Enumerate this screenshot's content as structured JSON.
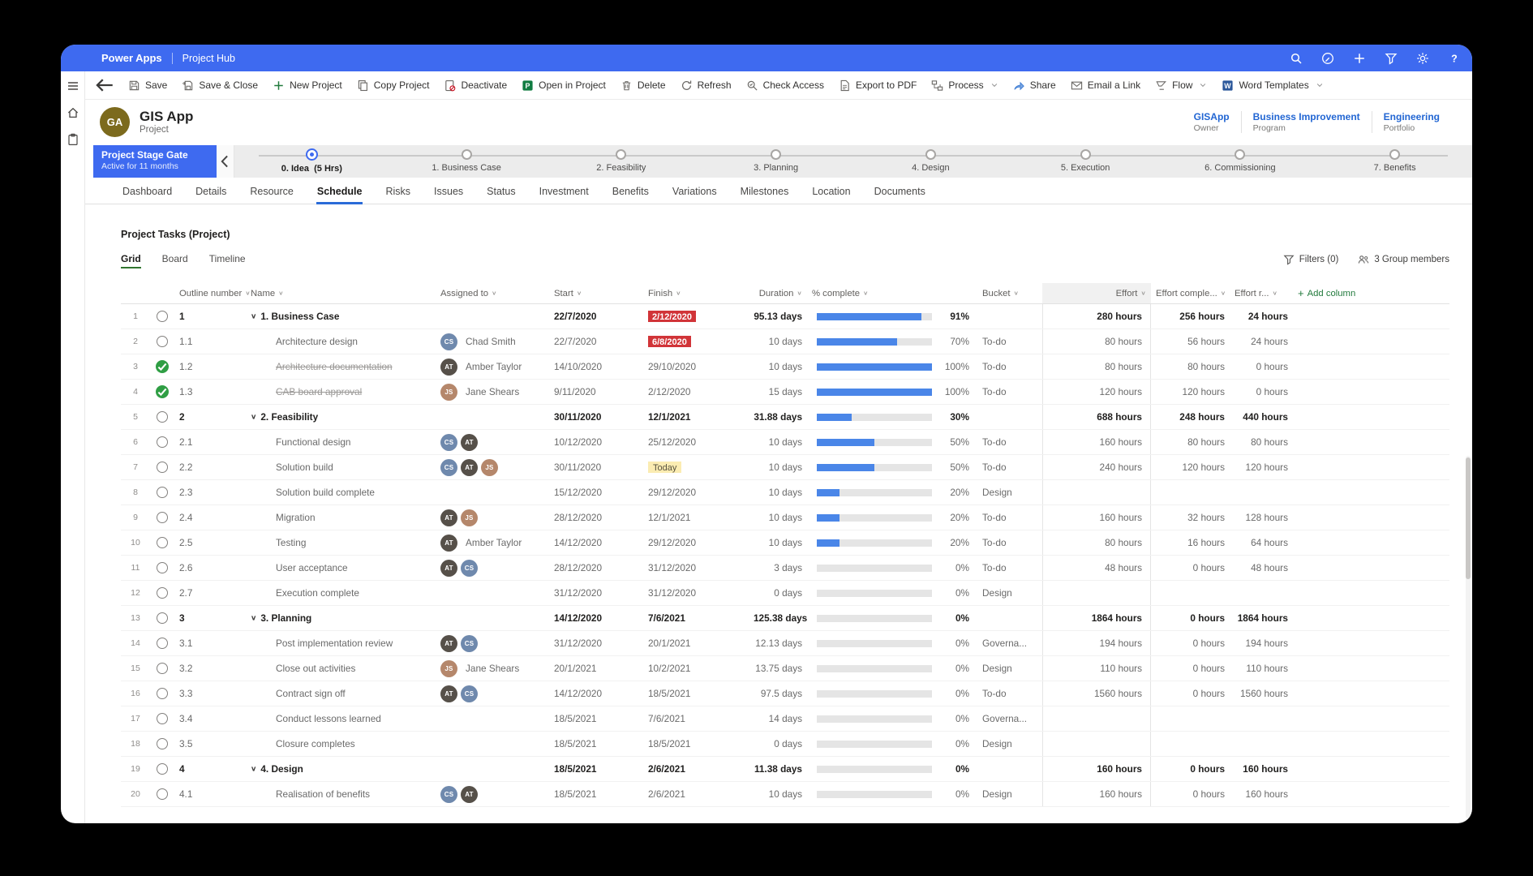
{
  "palette": {
    "appbar_blue": "#3e6af0",
    "accent_blue": "#2b6bd8",
    "link_blue": "#2266d3",
    "red_badge": "#d13438",
    "yellow_badge_bg": "#fbecb2",
    "yellow_badge_text": "#57523e",
    "bar_fill": "#4a86e8",
    "bar_track": "#e5e5e5",
    "green_check": "#2f9e44",
    "proj_green": "#31752f",
    "avatar_cs": "#6f89ad",
    "avatar_js": "#b5876b",
    "avatar_at": "#565049",
    "ga_avatar": "#7c6a1d"
  },
  "app_bar": {
    "product": "Power Apps",
    "app": "Project Hub",
    "right_icons": [
      "search-icon",
      "edit-environment-icon",
      "add-icon",
      "filter-icon",
      "settings-gear-icon",
      "help-icon"
    ]
  },
  "command_bar": {
    "items": [
      {
        "label": "Save",
        "icon": "save"
      },
      {
        "label": "Save & Close",
        "icon": "save-close"
      },
      {
        "label": "New Project",
        "icon": "new-plus"
      },
      {
        "label": "Copy Project",
        "icon": "copy"
      },
      {
        "label": "Deactivate",
        "icon": "deactivate"
      },
      {
        "label": "Open in Project",
        "icon": "open-project"
      },
      {
        "label": "Delete",
        "icon": "delete"
      },
      {
        "label": "Refresh",
        "icon": "refresh"
      },
      {
        "label": "Check Access",
        "icon": "check-access"
      },
      {
        "label": "Export to PDF",
        "icon": "export-pdf"
      },
      {
        "label": "Process",
        "icon": "process",
        "chevron": true
      },
      {
        "label": "Share",
        "icon": "share"
      },
      {
        "label": "Email a Link",
        "icon": "email"
      },
      {
        "label": "Flow",
        "icon": "flow",
        "chevron": true
      },
      {
        "label": "Word Templates",
        "icon": "word",
        "chevron": true
      }
    ]
  },
  "record_header": {
    "initials": "GA",
    "title": "GIS App",
    "entity": "Project",
    "fields": [
      {
        "value": "GISApp",
        "label": "Owner"
      },
      {
        "value": "Business Improvement",
        "label": "Program"
      },
      {
        "value": "Engineering",
        "label": "Portfolio"
      }
    ]
  },
  "stage_gate": {
    "title": "Project Stage Gate",
    "subtitle": "Active for 11 months",
    "stages": [
      {
        "label": "0. Idea  (5 Hrs)",
        "active": true
      },
      {
        "label": "1. Business Case"
      },
      {
        "label": "2. Feasibility"
      },
      {
        "label": "3. Planning"
      },
      {
        "label": "4. Design"
      },
      {
        "label": "5. Execution"
      },
      {
        "label": "6. Commissioning"
      },
      {
        "label": "7. Benefits"
      }
    ]
  },
  "tabs": {
    "active": "Schedule",
    "items": [
      "Dashboard",
      "Details",
      "Resource",
      "Schedule",
      "Risks",
      "Issues",
      "Status",
      "Investment",
      "Benefits",
      "Variations",
      "Milestones",
      "Location",
      "Documents"
    ]
  },
  "section": {
    "title": "Project Tasks (Project)",
    "views": [
      "Grid",
      "Board",
      "Timeline"
    ],
    "active_view": "Grid",
    "filters_label": "Filters (0)",
    "group_members_label": "3 Group members",
    "add_column_label": "Add column"
  },
  "table": {
    "columns": [
      {
        "label": "Outline number"
      },
      {
        "label": "Name"
      },
      {
        "label": "Assigned to"
      },
      {
        "label": "Start"
      },
      {
        "label": "Finish"
      },
      {
        "label": "Duration",
        "align": "right"
      },
      {
        "label": "% complete"
      },
      {
        "label": "Bucket"
      },
      {
        "label": "Effort",
        "align": "right",
        "shaded": true
      },
      {
        "label": "Effort comple..."
      },
      {
        "label": "Effort r..."
      }
    ],
    "assignee_directory": {
      "cs": {
        "initials": "CS",
        "name": "Chad Smith"
      },
      "at": {
        "initials": "AT",
        "name": "Amber Taylor"
      },
      "js": {
        "initials": "JS",
        "name": "Jane Shears"
      }
    },
    "rows": [
      {
        "n": 1,
        "status": "open",
        "outline": "1",
        "name": "1. Business Case",
        "summary": true,
        "avatars": [],
        "assignee_name": "",
        "start": "22/7/2020",
        "finish": "2/12/2020",
        "finish_badge": "red",
        "duration": "95.13 days",
        "pct": 91,
        "pct_label": "91%",
        "bucket": "",
        "effort": "280 hours",
        "effort_complete": "256 hours",
        "effort_remaining": "24 hours"
      },
      {
        "n": 2,
        "status": "open",
        "outline": "1.1",
        "name": "Architecture design",
        "summary": false,
        "avatars": [
          "cs"
        ],
        "assignee_name": "Chad Smith",
        "start": "22/7/2020",
        "finish": "6/8/2020",
        "finish_badge": "red",
        "duration": "10 days",
        "pct": 70,
        "pct_label": "70%",
        "bucket": "To-do",
        "effort": "80 hours",
        "effort_complete": "56 hours",
        "effort_remaining": "24 hours"
      },
      {
        "n": 3,
        "status": "done",
        "outline": "1.2",
        "name": "Architecture documentation",
        "summary": false,
        "strike": true,
        "avatars": [
          "at"
        ],
        "assignee_name": "Amber Taylor",
        "start": "14/10/2020",
        "finish": "29/10/2020",
        "finish_badge": "",
        "duration": "10 days",
        "pct": 100,
        "pct_label": "100%",
        "bucket": "To-do",
        "effort": "80 hours",
        "effort_complete": "80 hours",
        "effort_remaining": "0 hours"
      },
      {
        "n": 4,
        "status": "done",
        "outline": "1.3",
        "name": "CAB board approval",
        "summary": false,
        "strike": true,
        "avatars": [
          "js"
        ],
        "assignee_name": "Jane Shears",
        "start": "9/11/2020",
        "finish": "2/12/2020",
        "finish_badge": "",
        "duration": "15 days",
        "pct": 100,
        "pct_label": "100%",
        "bucket": "To-do",
        "effort": "120 hours",
        "effort_complete": "120 hours",
        "effort_remaining": "0 hours"
      },
      {
        "n": 5,
        "status": "open",
        "outline": "2",
        "name": "2. Feasibility",
        "summary": true,
        "avatars": [],
        "assignee_name": "",
        "start": "30/11/2020",
        "finish": "12/1/2021",
        "finish_badge": "",
        "duration": "31.88 days",
        "pct": 30,
        "pct_label": "30%",
        "bucket": "",
        "effort": "688 hours",
        "effort_complete": "248 hours",
        "effort_remaining": "440 hours"
      },
      {
        "n": 6,
        "status": "open",
        "outline": "2.1",
        "name": "Functional design",
        "summary": false,
        "avatars": [
          "cs",
          "at"
        ],
        "assignee_name": "",
        "start": "10/12/2020",
        "finish": "25/12/2020",
        "finish_badge": "",
        "duration": "10 days",
        "pct": 50,
        "pct_label": "50%",
        "bucket": "To-do",
        "effort": "160 hours",
        "effort_complete": "80 hours",
        "effort_remaining": "80 hours"
      },
      {
        "n": 7,
        "status": "open",
        "outline": "2.2",
        "name": "Solution build",
        "summary": false,
        "avatars": [
          "cs",
          "at",
          "js"
        ],
        "assignee_name": "",
        "start": "30/11/2020",
        "finish": "Today",
        "finish_badge": "today",
        "duration": "10 days",
        "pct": 50,
        "pct_label": "50%",
        "bucket": "To-do",
        "effort": "240 hours",
        "effort_complete": "120 hours",
        "effort_remaining": "120 hours"
      },
      {
        "n": 8,
        "status": "open",
        "outline": "2.3",
        "name": "Solution build complete",
        "summary": false,
        "avatars": [],
        "assignee_name": "",
        "start": "15/12/2020",
        "finish": "29/12/2020",
        "finish_badge": "",
        "duration": "10 days",
        "pct": 20,
        "pct_label": "20%",
        "bucket": "Design",
        "effort": "",
        "effort_complete": "",
        "effort_remaining": ""
      },
      {
        "n": 9,
        "status": "open",
        "outline": "2.4",
        "name": "Migration",
        "summary": false,
        "avatars": [
          "at",
          "js"
        ],
        "assignee_name": "",
        "start": "28/12/2020",
        "finish": "12/1/2021",
        "finish_badge": "",
        "duration": "10 days",
        "pct": 20,
        "pct_label": "20%",
        "bucket": "To-do",
        "effort": "160 hours",
        "effort_complete": "32 hours",
        "effort_remaining": "128 hours"
      },
      {
        "n": 10,
        "status": "open",
        "outline": "2.5",
        "name": "Testing",
        "summary": false,
        "avatars": [
          "at"
        ],
        "assignee_name": "Amber Taylor",
        "start": "14/12/2020",
        "finish": "29/12/2020",
        "finish_badge": "",
        "duration": "10 days",
        "pct": 20,
        "pct_label": "20%",
        "bucket": "To-do",
        "effort": "80 hours",
        "effort_complete": "16 hours",
        "effort_remaining": "64 hours"
      },
      {
        "n": 11,
        "status": "open",
        "outline": "2.6",
        "name": "User acceptance",
        "summary": false,
        "avatars": [
          "at",
          "cs"
        ],
        "assignee_name": "",
        "start": "28/12/2020",
        "finish": "31/12/2020",
        "finish_badge": "",
        "duration": "3 days",
        "pct": 0,
        "pct_label": "0%",
        "bucket": "To-do",
        "effort": "48 hours",
        "effort_complete": "0 hours",
        "effort_remaining": "48 hours"
      },
      {
        "n": 12,
        "status": "open",
        "outline": "2.7",
        "name": "Execution complete",
        "summary": false,
        "avatars": [],
        "assignee_name": "",
        "start": "31/12/2020",
        "finish": "31/12/2020",
        "finish_badge": "",
        "duration": "0 days",
        "pct": 0,
        "pct_label": "0%",
        "bucket": "Design",
        "effort": "",
        "effort_complete": "",
        "effort_remaining": ""
      },
      {
        "n": 13,
        "status": "open",
        "outline": "3",
        "name": "3. Planning",
        "summary": true,
        "avatars": [],
        "assignee_name": "",
        "start": "14/12/2020",
        "finish": "7/6/2021",
        "finish_badge": "",
        "duration": "125.38 days",
        "pct": 0,
        "pct_label": "0%",
        "bucket": "",
        "effort": "1864 hours",
        "effort_complete": "0 hours",
        "effort_remaining": "1864 hours"
      },
      {
        "n": 14,
        "status": "open",
        "outline": "3.1",
        "name": "Post implementation review",
        "summary": false,
        "avatars": [
          "at",
          "cs"
        ],
        "assignee_name": "",
        "start": "31/12/2020",
        "finish": "20/1/2021",
        "finish_badge": "",
        "duration": "12.13 days",
        "pct": 0,
        "pct_label": "0%",
        "bucket": "Governa...",
        "effort": "194 hours",
        "effort_complete": "0 hours",
        "effort_remaining": "194 hours"
      },
      {
        "n": 15,
        "status": "open",
        "outline": "3.2",
        "name": "Close out activities",
        "summary": false,
        "avatars": [
          "js"
        ],
        "assignee_name": "Jane Shears",
        "start": "20/1/2021",
        "finish": "10/2/2021",
        "finish_badge": "",
        "duration": "13.75 days",
        "pct": 0,
        "pct_label": "0%",
        "bucket": "Design",
        "effort": "110 hours",
        "effort_complete": "0 hours",
        "effort_remaining": "110 hours"
      },
      {
        "n": 16,
        "status": "open",
        "outline": "3.3",
        "name": "Contract sign off",
        "summary": false,
        "avatars": [
          "at",
          "cs"
        ],
        "assignee_name": "",
        "start": "14/12/2020",
        "finish": "18/5/2021",
        "finish_badge": "",
        "duration": "97.5 days",
        "pct": 0,
        "pct_label": "0%",
        "bucket": "To-do",
        "effort": "1560 hours",
        "effort_complete": "0 hours",
        "effort_remaining": "1560 hours"
      },
      {
        "n": 17,
        "status": "open",
        "outline": "3.4",
        "name": "Conduct lessons learned",
        "summary": false,
        "avatars": [],
        "assignee_name": "",
        "start": "18/5/2021",
        "finish": "7/6/2021",
        "finish_badge": "",
        "duration": "14 days",
        "pct": 0,
        "pct_label": "0%",
        "bucket": "Governa...",
        "effort": "",
        "effort_complete": "",
        "effort_remaining": ""
      },
      {
        "n": 18,
        "status": "open",
        "outline": "3.5",
        "name": "Closure completes",
        "summary": false,
        "avatars": [],
        "assignee_name": "",
        "start": "18/5/2021",
        "finish": "18/5/2021",
        "finish_badge": "",
        "duration": "0 days",
        "pct": 0,
        "pct_label": "0%",
        "bucket": "Design",
        "effort": "",
        "effort_complete": "",
        "effort_remaining": ""
      },
      {
        "n": 19,
        "status": "open",
        "outline": "4",
        "name": "4. Design",
        "summary": true,
        "avatars": [],
        "assignee_name": "",
        "start": "18/5/2021",
        "finish": "2/6/2021",
        "finish_badge": "",
        "duration": "11.38 days",
        "pct": 0,
        "pct_label": "0%",
        "bucket": "",
        "effort": "160 hours",
        "effort_complete": "0 hours",
        "effort_remaining": "160 hours"
      },
      {
        "n": 20,
        "status": "open",
        "outline": "4.1",
        "name": "Realisation of benefits",
        "summary": false,
        "avatars": [
          "cs",
          "at"
        ],
        "assignee_name": "",
        "start": "18/5/2021",
        "finish": "2/6/2021",
        "finish_badge": "",
        "duration": "10 days",
        "pct": 0,
        "pct_label": "0%",
        "bucket": "Design",
        "effort": "160 hours",
        "effort_complete": "0 hours",
        "effort_remaining": "160 hours"
      }
    ]
  }
}
